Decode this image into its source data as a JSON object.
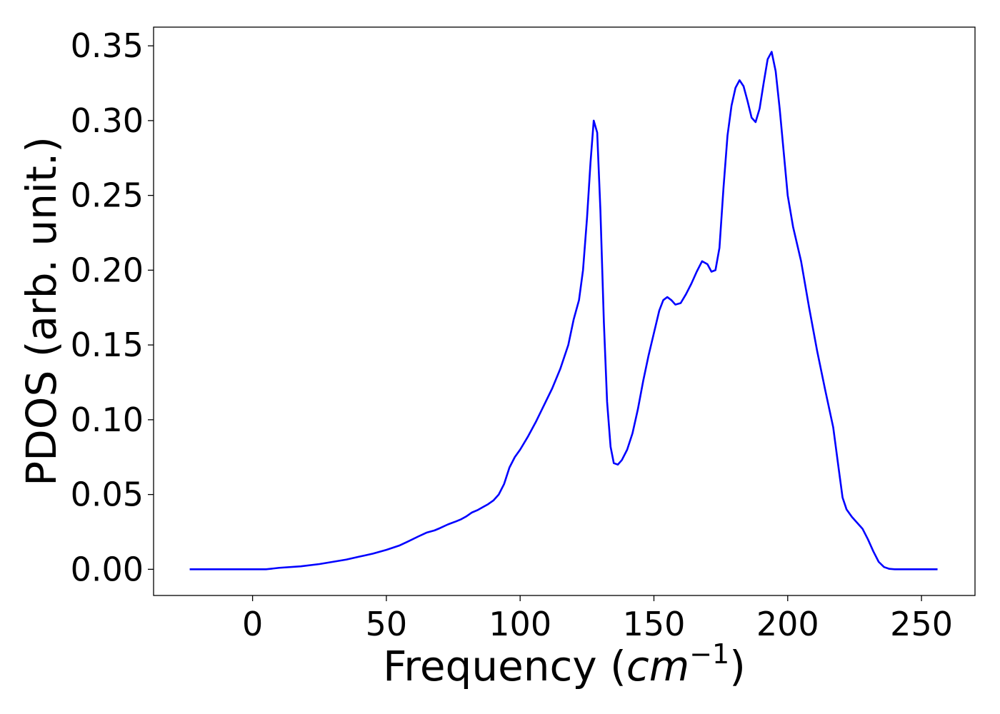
{
  "chart_data": {
    "type": "line",
    "xlabel": "Frequency (",
    "xlabel_unit_base": "cm",
    "xlabel_unit_exp": "−1",
    "xlabel_close": ")",
    "ylabel": "PDOS (arb. unit.)",
    "xlim": [
      -37,
      270
    ],
    "ylim": [
      -0.0175,
      0.3625
    ],
    "xticks": [
      0,
      50,
      100,
      150,
      200,
      250
    ],
    "xtick_labels": [
      "0",
      "50",
      "100",
      "150",
      "200",
      "250"
    ],
    "yticks": [
      0.0,
      0.05,
      0.1,
      0.15,
      0.2,
      0.25,
      0.3,
      0.35
    ],
    "ytick_labels": [
      "0.00",
      "0.05",
      "0.10",
      "0.15",
      "0.20",
      "0.25",
      "0.30",
      "0.35"
    ],
    "grid": false,
    "series": [
      {
        "color": "#0000ff",
        "x": [
          -23.5,
          0,
          5,
          10,
          18,
          25,
          30,
          35,
          40,
          45,
          50,
          55,
          58,
          62,
          65,
          68,
          70,
          73,
          76,
          78,
          80,
          82,
          84,
          86,
          88,
          90,
          92,
          94,
          96,
          98,
          100,
          103,
          106,
          109,
          112,
          115,
          118,
          120,
          122,
          123.5,
          125,
          126.3,
          127.5,
          128.8,
          130,
          131.3,
          132.5,
          133.8,
          135,
          136.5,
          138,
          140,
          142,
          144,
          146,
          148,
          150,
          152,
          153.5,
          155,
          156.5,
          158,
          160,
          162,
          164,
          166,
          168,
          170,
          171.5,
          173,
          174.5,
          176,
          177.5,
          179,
          180.5,
          182,
          183.5,
          185,
          186.5,
          188,
          189.5,
          191,
          192.5,
          194,
          195.5,
          197,
          198.5,
          200,
          202,
          205,
          208,
          211,
          214,
          217,
          219,
          220.5,
          222,
          224,
          226,
          228,
          230,
          232,
          234,
          236,
          238,
          240,
          245,
          250,
          256
        ],
        "y": [
          0,
          0,
          0,
          0.001,
          0.002,
          0.0035,
          0.005,
          0.0065,
          0.0085,
          0.0105,
          0.013,
          0.016,
          0.0185,
          0.022,
          0.0245,
          0.026,
          0.0275,
          0.03,
          0.032,
          0.0335,
          0.0355,
          0.038,
          0.0395,
          0.0415,
          0.0435,
          0.046,
          0.05,
          0.057,
          0.068,
          0.075,
          0.08,
          0.089,
          0.099,
          0.11,
          0.121,
          0.134,
          0.15,
          0.167,
          0.18,
          0.2,
          0.235,
          0.272,
          0.3,
          0.292,
          0.24,
          0.165,
          0.112,
          0.082,
          0.071,
          0.07,
          0.073,
          0.08,
          0.091,
          0.107,
          0.126,
          0.143,
          0.158,
          0.173,
          0.18,
          0.182,
          0.18,
          0.177,
          0.178,
          0.184,
          0.191,
          0.199,
          0.206,
          0.204,
          0.199,
          0.2,
          0.215,
          0.255,
          0.29,
          0.31,
          0.322,
          0.327,
          0.323,
          0.313,
          0.302,
          0.299,
          0.308,
          0.325,
          0.341,
          0.346,
          0.333,
          0.308,
          0.279,
          0.25,
          0.229,
          0.206,
          0.175,
          0.146,
          0.12,
          0.095,
          0.068,
          0.048,
          0.04,
          0.035,
          0.031,
          0.027,
          0.02,
          0.012,
          0.005,
          0.0015,
          0.0003,
          0,
          0,
          0,
          0
        ]
      }
    ]
  }
}
